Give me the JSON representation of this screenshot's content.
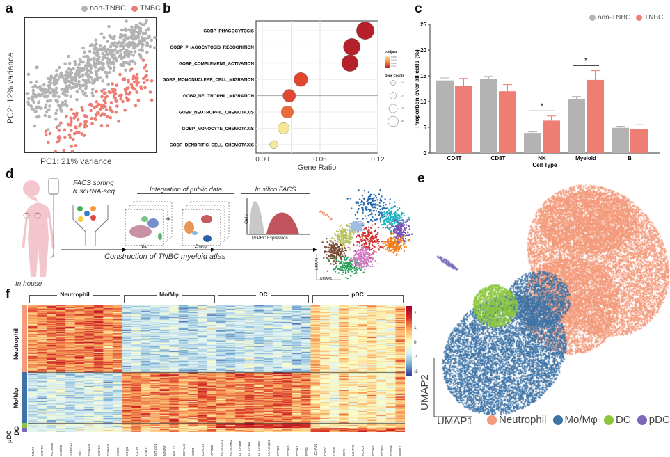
{
  "colors": {
    "gray": "#b3b3b3",
    "salmon": "#ee7d73",
    "neutrophil": "#f39a7b",
    "momac": "#3d73a6",
    "dc": "#8cc63f",
    "pdc": "#7b68b8"
  },
  "panel_a": {
    "label": "a",
    "legend": [
      "non-TNBC",
      "TNBC"
    ],
    "xlabel": "PC1: 21% variance",
    "ylabel": "PC2: 12% variance"
  },
  "panel_d": {
    "label": "d",
    "facs1": "FACS sorting",
    "facs2": "& scRNA-seq",
    "integration": "Integration of public data",
    "wu": "Wu",
    "zhang": "Zhang",
    "plus": "+",
    "insilico": "In silico FACS",
    "cell_axis": "Cell #",
    "ptprc": "PTPRC Expression",
    "construction": "Construction of TNBC myeloid atlas",
    "inhouse": "In house",
    "umap1": "UMAP1",
    "umap2": "UMAP2"
  },
  "panel_e": {
    "label": "e",
    "xlabel": "UMAP1",
    "ylabel": "UMAP2",
    "legend": [
      "Neutrophil",
      "Mo/Mφ",
      "DC",
      "pDC"
    ]
  },
  "panel_f": {
    "label": "f",
    "col_groups": [
      "Neutrophil",
      "Mo/Mφ",
      "DC",
      "pDC"
    ],
    "row_groups": [
      "Neutrophil",
      "Mo/Mφ",
      "DC",
      "pDC"
    ],
    "colorbar_ticks": [
      "2",
      "1",
      "0",
      "-1",
      "-2"
    ],
    "genes": [
      "MMP9",
      "CSF3R",
      "FCGR3B",
      "CXCR2",
      "S100A12",
      "SELL",
      "S100A8",
      "CSF1R",
      "S100A9",
      "G0S2",
      "C1QB",
      "C1QA",
      "CST3",
      "MT-CO1",
      "MS4A7",
      "RPL13",
      "EEF1A1",
      "CD74",
      "LGALS1",
      "APOC2",
      "HLA-DQA1",
      "HLA-DRB1",
      "HLA-DPB1",
      "HLA-DRA",
      "HLA-DPA1",
      "HLA-DQB1",
      "RPS23",
      "RPS4X",
      "RPS19",
      "RPS6",
      "JCHAIN",
      "ITM2C",
      "GZMB",
      "IRF7",
      "LILRA4",
      "PLAC8",
      "RPS4X",
      "RPS3A",
      "DDX3X",
      "RPS12"
    ]
  },
  "chart_data": [
    {
      "panel": "b",
      "label": "b",
      "type": "scatter",
      "title": "",
      "xlabel": "Gene Ratio",
      "ylabel": "",
      "xlim": [
        0,
        0.125
      ],
      "xticks": [
        "0.00",
        "0.06",
        "0.12"
      ],
      "terms": [
        "GOBP_PHAGOCYTOSIS",
        "GOBP_PHAGOCYTOSIS_RECOGNITION",
        "GOBP_COMPLEMENT_ACTIVATION",
        "GOBP_MONONUCLEAR_CELL_MIGRATION",
        "GOBP_NEUTROPHIL_MIGRATION",
        "GOBP_NEUTROPHIL_CHEMOTAXIS",
        "GOBP_MONOCYTE_CHEMOTAXIS",
        "GOBP_DENDRITIC_CELL_CHEMOTAXIS"
      ],
      "gene_ratio": [
        0.107,
        0.093,
        0.091,
        0.04,
        0.028,
        0.026,
        0.022,
        0.012
      ],
      "gene_counts": [
        45,
        40,
        38,
        25,
        20,
        18,
        15,
        6
      ],
      "p_adjust": [
        0.0003,
        0.0004,
        0.0004,
        0.0018,
        0.002,
        0.0022,
        0.0042,
        0.0038
      ],
      "legend_color_title": "p.adjust",
      "legend_color_ticks": [
        "0.004",
        "0.003",
        "0.002",
        "0.001"
      ],
      "legend_size_title": "Gene Counts",
      "legend_size_ticks": [
        "10",
        "20",
        "30",
        "40"
      ]
    },
    {
      "panel": "c",
      "label": "c",
      "type": "bar",
      "title": "",
      "xlabel": "Cell Type",
      "ylabel": "Proportion over all cells (%)",
      "ylim": [
        0,
        25
      ],
      "yticks": [
        "0",
        "5",
        "10",
        "15",
        "20",
        "25"
      ],
      "categories": [
        "CD4T",
        "CD8T",
        "NK",
        "Myeloid",
        "B"
      ],
      "series": [
        {
          "name": "non-TNBC",
          "values": [
            14.1,
            14.4,
            3.9,
            10.5,
            4.9
          ],
          "errors": [
            0.5,
            0.5,
            0.2,
            0.5,
            0.3
          ]
        },
        {
          "name": "TNBC",
          "values": [
            13.0,
            12.0,
            6.3,
            14.2,
            4.6
          ],
          "errors": [
            1.5,
            1.3,
            0.9,
            1.8,
            0.9
          ]
        }
      ],
      "significance": [
        {
          "category": "NK",
          "mark": "*"
        },
        {
          "category": "Myeloid",
          "mark": "*"
        }
      ]
    }
  ]
}
